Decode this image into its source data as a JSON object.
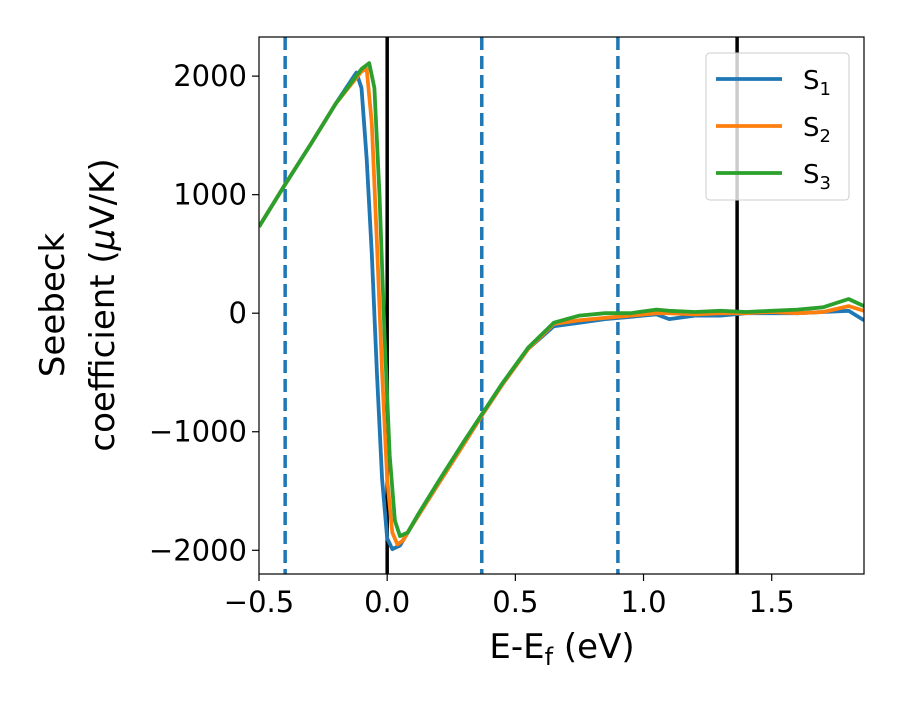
{
  "chart_data": {
    "type": "line",
    "xlabel": "E-E",
    "xlabel_sub": "f",
    "xlabel_unit": " (eV)",
    "ylabel_line1": "Seebeck",
    "ylabel_line2": "coefficient  (",
    "ylabel_mu": "μ",
    "ylabel_unit": "V/K)",
    "xlim": [
      -0.5,
      1.86
    ],
    "ylim": [
      -2200,
      2330
    ],
    "x_ticks": [
      -0.5,
      0.0,
      0.5,
      1.0,
      1.5
    ],
    "x_tick_labels": [
      "−0.5",
      "0.0",
      "0.5",
      "1.0",
      "1.5"
    ],
    "y_ticks": [
      -2000,
      -1000,
      0,
      1000,
      2000
    ],
    "y_tick_labels": [
      "−2000",
      "−1000",
      "0",
      "1000",
      "2000"
    ],
    "legend_position": "top-right",
    "vlines_solid": [
      0.0,
      1.365
    ],
    "vlines_dashed": [
      -0.398,
      0.369,
      0.9
    ],
    "series": [
      {
        "name": "S",
        "name_sub": "1",
        "color": "#1f77b4",
        "x": [
          -0.5,
          -0.4,
          -0.3,
          -0.2,
          -0.12,
          -0.1,
          -0.08,
          -0.06,
          -0.04,
          -0.02,
          0.0,
          0.02,
          0.05,
          0.1,
          0.2,
          0.3,
          0.37,
          0.45,
          0.55,
          0.65,
          0.75,
          0.85,
          0.95,
          1.05,
          1.1,
          1.2,
          1.3,
          1.4,
          1.5,
          1.6,
          1.7,
          1.8,
          1.86
        ],
        "y": [
          730,
          1080,
          1420,
          1770,
          2030,
          1900,
          1300,
          500,
          -500,
          -1400,
          -1900,
          -1990,
          -1960,
          -1780,
          -1440,
          -1100,
          -860,
          -600,
          -300,
          -110,
          -80,
          -50,
          -30,
          -10,
          -50,
          -20,
          -20,
          0,
          0,
          0,
          10,
          20,
          -60
        ]
      },
      {
        "name": "S",
        "name_sub": "2",
        "color": "#ff7f0e",
        "x": [
          -0.5,
          -0.4,
          -0.3,
          -0.2,
          -0.1,
          -0.08,
          -0.06,
          -0.04,
          -0.02,
          0.0,
          0.02,
          0.04,
          0.06,
          0.1,
          0.2,
          0.3,
          0.37,
          0.45,
          0.55,
          0.65,
          0.75,
          0.85,
          0.95,
          1.05,
          1.1,
          1.2,
          1.3,
          1.4,
          1.5,
          1.6,
          1.7,
          1.8,
          1.86
        ],
        "y": [
          730,
          1080,
          1420,
          1770,
          2040,
          2060,
          1600,
          600,
          -500,
          -1400,
          -1850,
          -1950,
          -1920,
          -1780,
          -1440,
          -1100,
          -860,
          -600,
          -300,
          -90,
          -60,
          -40,
          -20,
          0,
          0,
          -10,
          0,
          0,
          10,
          0,
          10,
          60,
          20
        ]
      },
      {
        "name": "S",
        "name_sub": "3",
        "color": "#2ca02c",
        "x": [
          -0.5,
          -0.4,
          -0.3,
          -0.2,
          -0.1,
          -0.07,
          -0.05,
          -0.03,
          -0.01,
          0.01,
          0.03,
          0.05,
          0.08,
          0.12,
          0.2,
          0.3,
          0.37,
          0.45,
          0.55,
          0.65,
          0.75,
          0.85,
          0.95,
          1.05,
          1.1,
          1.2,
          1.3,
          1.4,
          1.5,
          1.6,
          1.7,
          1.8,
          1.86
        ],
        "y": [
          730,
          1080,
          1420,
          1770,
          2060,
          2110,
          1900,
          1000,
          -200,
          -1200,
          -1750,
          -1880,
          -1850,
          -1700,
          -1420,
          -1080,
          -850,
          -590,
          -290,
          -80,
          -20,
          0,
          0,
          30,
          20,
          10,
          20,
          10,
          20,
          30,
          50,
          120,
          60
        ]
      }
    ]
  }
}
